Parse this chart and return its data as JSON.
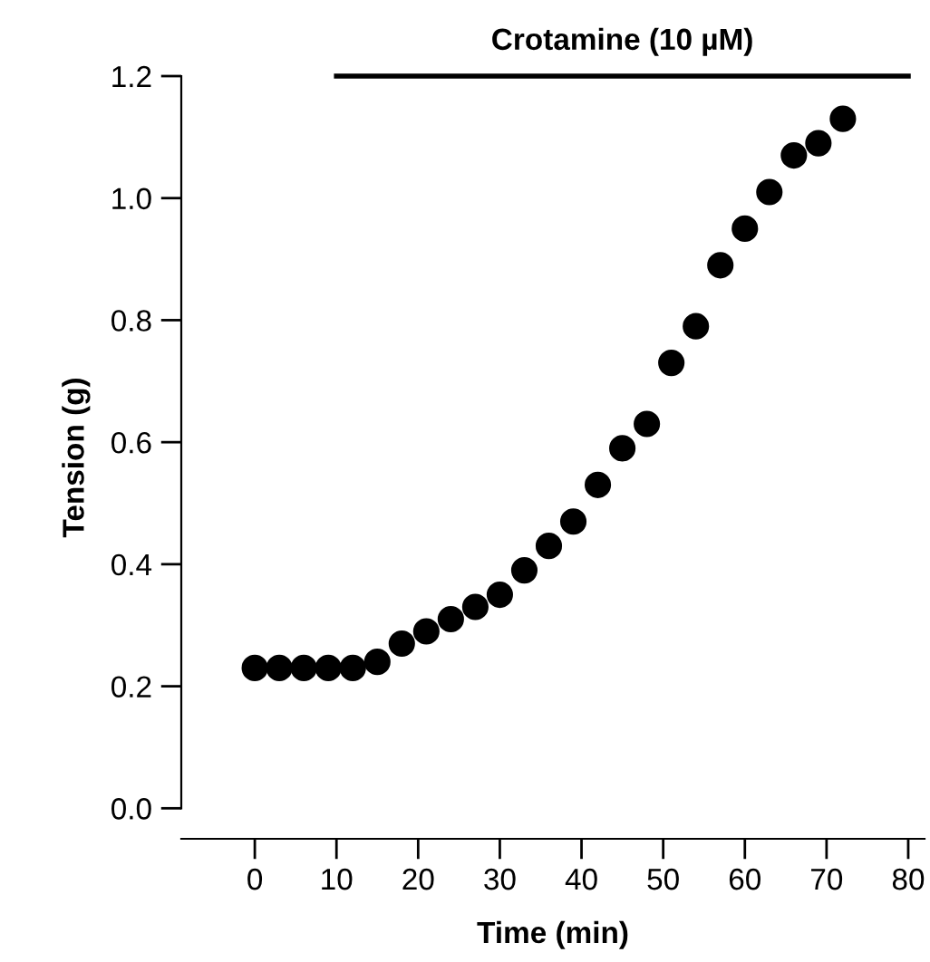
{
  "chart_data": {
    "type": "scatter",
    "xlabel": "Time (min)",
    "ylabel": "Tension (g)",
    "x": [
      0,
      3,
      6,
      9,
      12,
      15,
      18,
      21,
      24,
      27,
      30,
      33,
      36,
      39,
      42,
      45,
      48,
      51,
      54,
      57,
      60,
      63,
      66,
      69,
      72
    ],
    "series": [
      {
        "color": "#000000",
        "marker": "circle",
        "values": [
          0.23,
          0.23,
          0.23,
          0.23,
          0.23,
          0.24,
          0.27,
          0.29,
          0.31,
          0.33,
          0.35,
          0.39,
          0.43,
          0.47,
          0.53,
          0.59,
          0.63,
          0.73,
          0.79,
          0.89,
          0.95,
          1.01,
          1.07,
          1.09,
          1.13
        ]
      },
      {
        "type": "line",
        "name": "Crotamine (10 µM)",
        "color": "#000000",
        "marker": "none",
        "line_style": "solid",
        "x": [
          10,
          80
        ],
        "values": [
          1.2,
          1.2
        ]
      }
    ],
    "xlim": [
      -9,
      82
    ],
    "ylim": [
      -0.05,
      1.2
    ],
    "xticks": [
      0,
      10,
      20,
      30,
      40,
      50,
      60,
      70,
      80
    ],
    "yticks": [
      {
        "value": 0,
        "label": "0.0"
      },
      {
        "value": 0.2,
        "label": "0.2"
      },
      {
        "value": 0.4,
        "label": "0.4"
      },
      {
        "value": 0.6,
        "label": "0.6"
      },
      {
        "value": 0.8,
        "label": "0.8"
      },
      {
        "value": 1.0,
        "label": "1.0"
      },
      {
        "value": 1.2,
        "label": "1.2"
      }
    ],
    "grid": false,
    "legend": false
  }
}
